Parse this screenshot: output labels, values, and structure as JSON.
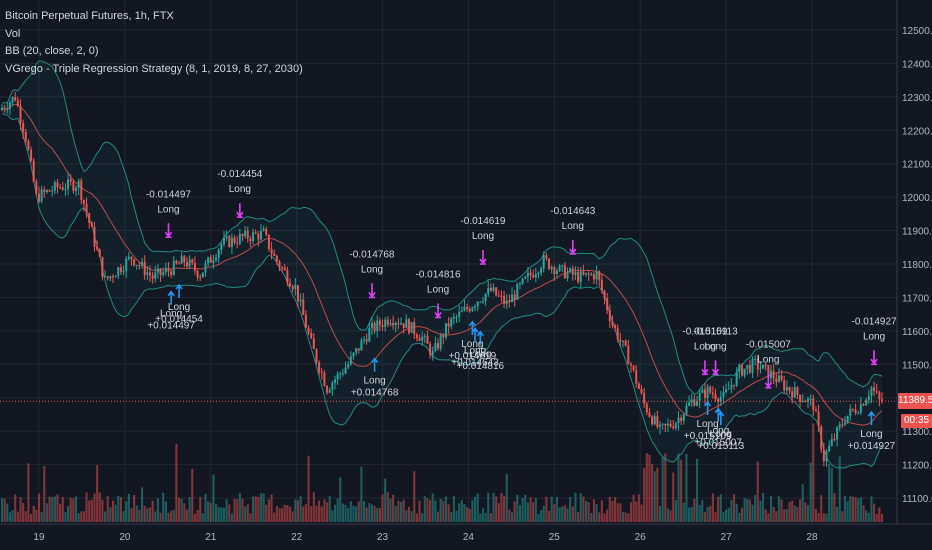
{
  "legend": {
    "line1": "Bitcoin Perpetual Futures, 1h, FTX",
    "line2": "Vol",
    "line3": "BB (20, close, 2, 0)",
    "line4": "VGrego - Triple Regression Strategy (8, 1, 2019, 8, 27, 2030)"
  },
  "last_price_label": "11389.5",
  "countdown_label": "00:35",
  "colors": {
    "background": "#131722",
    "up": "#26a69a",
    "down": "#ef5350",
    "band": "#1f8a80",
    "basis": "#b94a4a",
    "long_arrow": "#2196f3",
    "exit_arrow": "#e040fb",
    "grid": "#232733",
    "axis_text": "#b2b5be"
  },
  "chart_data": {
    "type": "candlestick",
    "title": "Bitcoin Perpetual Futures, 1h, FTX",
    "y_axis": {
      "ticks": [
        "12500.0",
        "12400.0",
        "12300.0",
        "12200.0",
        "12100.0",
        "12000.0",
        "11900.0",
        "11800.0",
        "11700.0",
        "11600.0",
        "11500.0",
        "11400.0",
        "11300.0",
        "11200.0",
        "11100.0"
      ],
      "range": [
        11030,
        12550
      ]
    },
    "x_axis": {
      "ticks": [
        "19",
        "20",
        "21",
        "22",
        "23",
        "24",
        "25",
        "26",
        "27",
        "28"
      ]
    },
    "price_path": [
      {
        "hour": 0,
        "price": 12260
      },
      {
        "hour": 6,
        "price": 12300
      },
      {
        "hour": 10,
        "price": 12180
      },
      {
        "hour": 14,
        "price": 12000
      },
      {
        "hour": 22,
        "price": 12030
      },
      {
        "hour": 30,
        "price": 12040
      },
      {
        "hour": 40,
        "price": 11750
      },
      {
        "hour": 50,
        "price": 11820
      },
      {
        "hour": 58,
        "price": 11760
      },
      {
        "hour": 64,
        "price": 11780
      },
      {
        "hour": 70,
        "price": 11810
      },
      {
        "hour": 76,
        "price": 11770
      },
      {
        "hour": 84,
        "price": 11860
      },
      {
        "hour": 92,
        "price": 11880
      },
      {
        "hour": 100,
        "price": 11890
      },
      {
        "hour": 104,
        "price": 11820
      },
      {
        "hour": 112,
        "price": 11730
      },
      {
        "hour": 118,
        "price": 11560
      },
      {
        "hour": 124,
        "price": 11430
      },
      {
        "hour": 132,
        "price": 11500
      },
      {
        "hour": 140,
        "price": 11600
      },
      {
        "hour": 148,
        "price": 11640
      },
      {
        "hour": 154,
        "price": 11620
      },
      {
        "hour": 160,
        "price": 11580
      },
      {
        "hour": 164,
        "price": 11530
      },
      {
        "hour": 170,
        "price": 11620
      },
      {
        "hour": 176,
        "price": 11660
      },
      {
        "hour": 182,
        "price": 11700
      },
      {
        "hour": 186,
        "price": 11720
      },
      {
        "hour": 192,
        "price": 11680
      },
      {
        "hour": 200,
        "price": 11760
      },
      {
        "hour": 206,
        "price": 11810
      },
      {
        "hour": 212,
        "price": 11780
      },
      {
        "hour": 220,
        "price": 11760
      },
      {
        "hour": 226,
        "price": 11770
      },
      {
        "hour": 232,
        "price": 11620
      },
      {
        "hour": 238,
        "price": 11520
      },
      {
        "hour": 244,
        "price": 11380
      },
      {
        "hour": 250,
        "price": 11300
      },
      {
        "hour": 256,
        "price": 11330
      },
      {
        "hour": 262,
        "price": 11390
      },
      {
        "hour": 268,
        "price": 11420
      },
      {
        "hour": 274,
        "price": 11400
      },
      {
        "hour": 280,
        "price": 11480
      },
      {
        "hour": 286,
        "price": 11500
      },
      {
        "hour": 292,
        "price": 11470
      },
      {
        "hour": 298,
        "price": 11430
      },
      {
        "hour": 304,
        "price": 11400
      },
      {
        "hour": 308,
        "price": 11380
      },
      {
        "hour": 312,
        "price": 11220
      },
      {
        "hour": 316,
        "price": 11280
      },
      {
        "hour": 320,
        "price": 11340
      },
      {
        "hour": 326,
        "price": 11380
      },
      {
        "hour": 330,
        "price": 11430
      },
      {
        "hour": 333,
        "price": 11389.5
      }
    ],
    "trade_annotations": [
      {
        "type": "exit",
        "hour": 63,
        "price": 11880,
        "value": "-0.014497",
        "label": "Long"
      },
      {
        "type": "entry",
        "hour": 64,
        "price": 11720,
        "value": "+0.014497",
        "label": "Long"
      },
      {
        "type": "entry",
        "hour": 67,
        "price": 11740,
        "value": "+0.014454",
        "label": "Long"
      },
      {
        "type": "exit",
        "hour": 90,
        "price": 11940,
        "value": "-0.014454",
        "label": "Long"
      },
      {
        "type": "exit",
        "hour": 140,
        "price": 11700,
        "value": "-0.014768",
        "label": "Long"
      },
      {
        "type": "entry",
        "hour": 141,
        "price": 11520,
        "value": "+0.014768",
        "label": "Long"
      },
      {
        "type": "exit",
        "hour": 165,
        "price": 11640,
        "value": "-0.014816",
        "label": "Long"
      },
      {
        "type": "entry",
        "hour": 181,
        "price": 11600,
        "value": "+0.014816",
        "label": "Long"
      },
      {
        "type": "exit",
        "hour": 182,
        "price": 11800,
        "value": "-0.014619",
        "label": "Long"
      },
      {
        "type": "entry",
        "hour": 178,
        "price": 11630,
        "value": "+0.014619",
        "label": "Long"
      },
      {
        "type": "exit",
        "hour": 216,
        "price": 11830,
        "value": "-0.014643",
        "label": "Long"
      },
      {
        "type": "entry",
        "hour": 179,
        "price": 11610,
        "value": "+0.014643",
        "label": "Long"
      },
      {
        "type": "exit",
        "hour": 266,
        "price": 11470,
        "value": "-0.015109",
        "label": "Long"
      },
      {
        "type": "entry",
        "hour": 267,
        "price": 11390,
        "value": "+0.015109",
        "label": "Long"
      },
      {
        "type": "exit",
        "hour": 270,
        "price": 11470,
        "value": "-0.015113",
        "label": "Long"
      },
      {
        "type": "entry",
        "hour": 272,
        "price": 11360,
        "value": "+0.015113",
        "label": "Long"
      },
      {
        "type": "exit",
        "hour": 290,
        "price": 11430,
        "value": "-0.015007",
        "label": "Long"
      },
      {
        "type": "entry",
        "hour": 271,
        "price": 11370,
        "value": "+0.015007",
        "label": "Long"
      },
      {
        "type": "exit",
        "hour": 330,
        "price": 11500,
        "value": "-0.014927",
        "label": "Long"
      },
      {
        "type": "entry",
        "hour": 329,
        "price": 11360,
        "value": "+0.014927",
        "label": "Long"
      }
    ]
  }
}
